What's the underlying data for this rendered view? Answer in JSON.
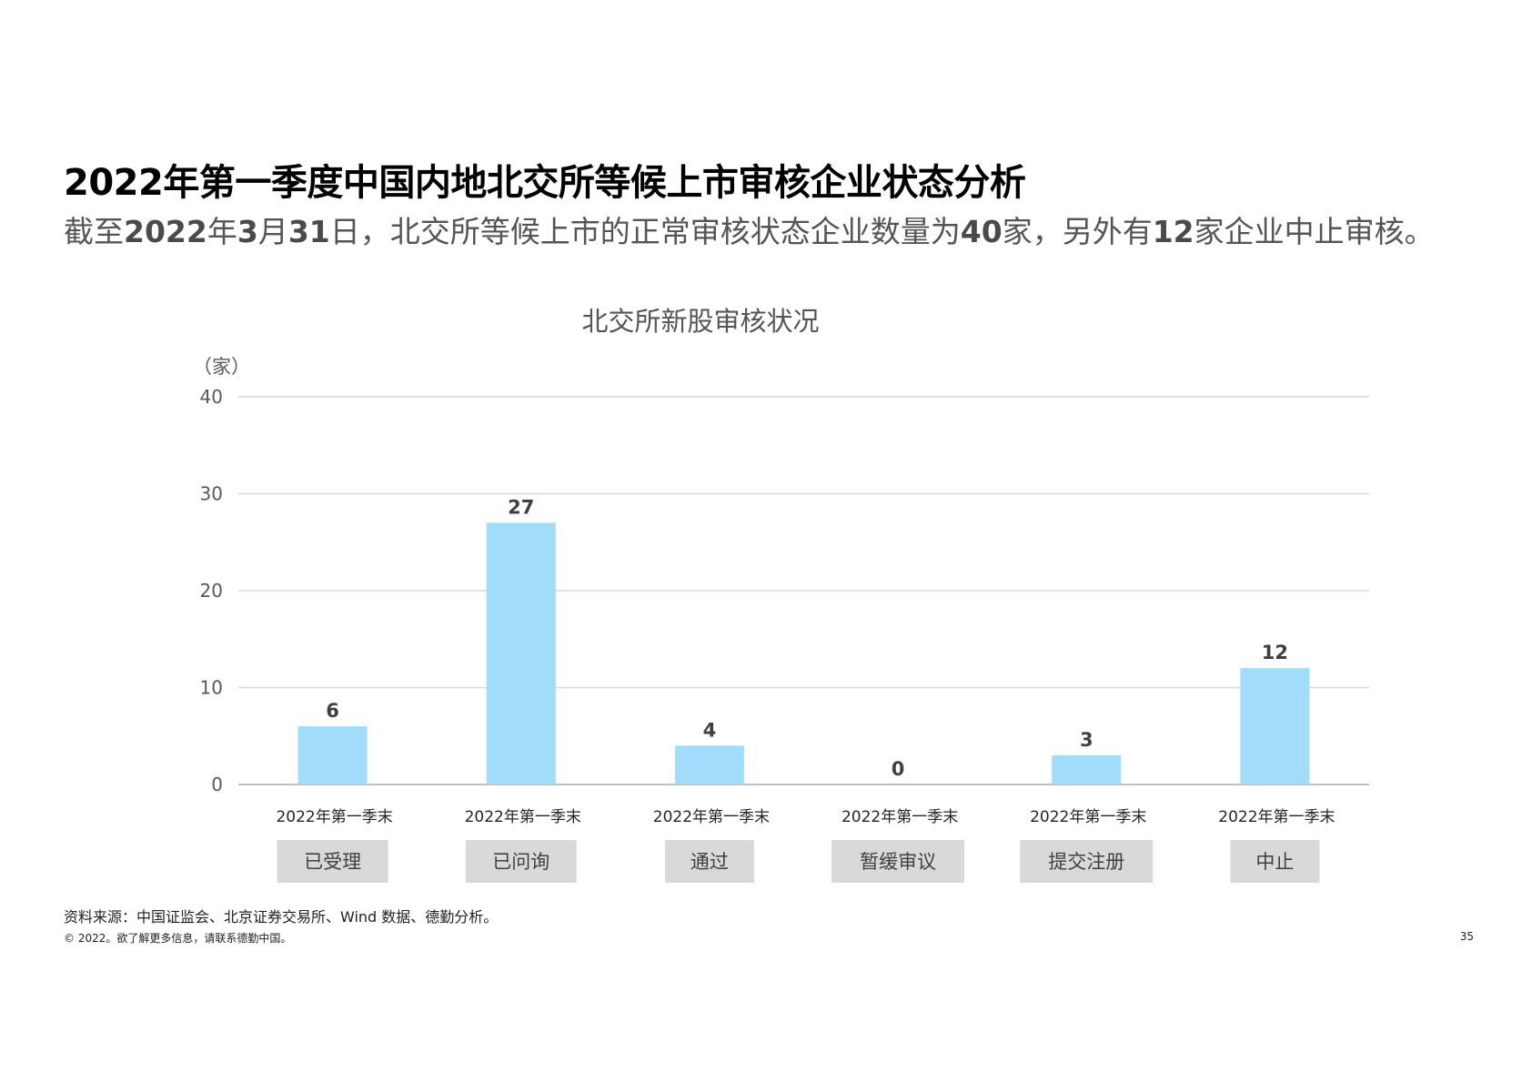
{
  "page": {
    "title": "2022年第一季度中国内地北交所等候上市审核企业状态分析",
    "subtitle": {
      "p1": "截至",
      "b1": "2022",
      "p2": "年",
      "b2": "3",
      "p3": "月",
      "b3": "31",
      "p4": "日，北交所等候上市的正常审核状态企业数量为",
      "b4": "40",
      "p5": "家，另外有",
      "b5": "12",
      "p6": "家企业中止审核。"
    },
    "source": "资料来源：中国证监会、北京证券交易所、Wind 数据、德勤分析。",
    "copyright": "© 2022。欲了解更多信息，请联系德勤中国。",
    "page_number": "35"
  },
  "colors": {
    "bar": "#a1dcfa",
    "gridline": "#d9d9d9",
    "axis": "#bfbfbf",
    "category_box": "#d9d9d9",
    "tick_text": "#595959",
    "label_text": "#404040"
  },
  "chart_data": {
    "type": "bar",
    "title": "北交所新股审核状况",
    "ylabel": "（家）",
    "ylim": [
      0,
      40
    ],
    "yticks": [
      0,
      10,
      20,
      30,
      40
    ],
    "grid": true,
    "categories": [
      "2022年第一季末",
      "2022年第一季末",
      "2022年第一季末",
      "2022年第一季末",
      "2022年第一季末",
      "2022年第一季末"
    ],
    "series_labels": [
      "已受理",
      "已问询",
      "通过",
      "暂缓审议",
      "提交注册",
      "中止"
    ],
    "values": [
      6,
      27,
      4,
      0,
      3,
      12
    ]
  }
}
